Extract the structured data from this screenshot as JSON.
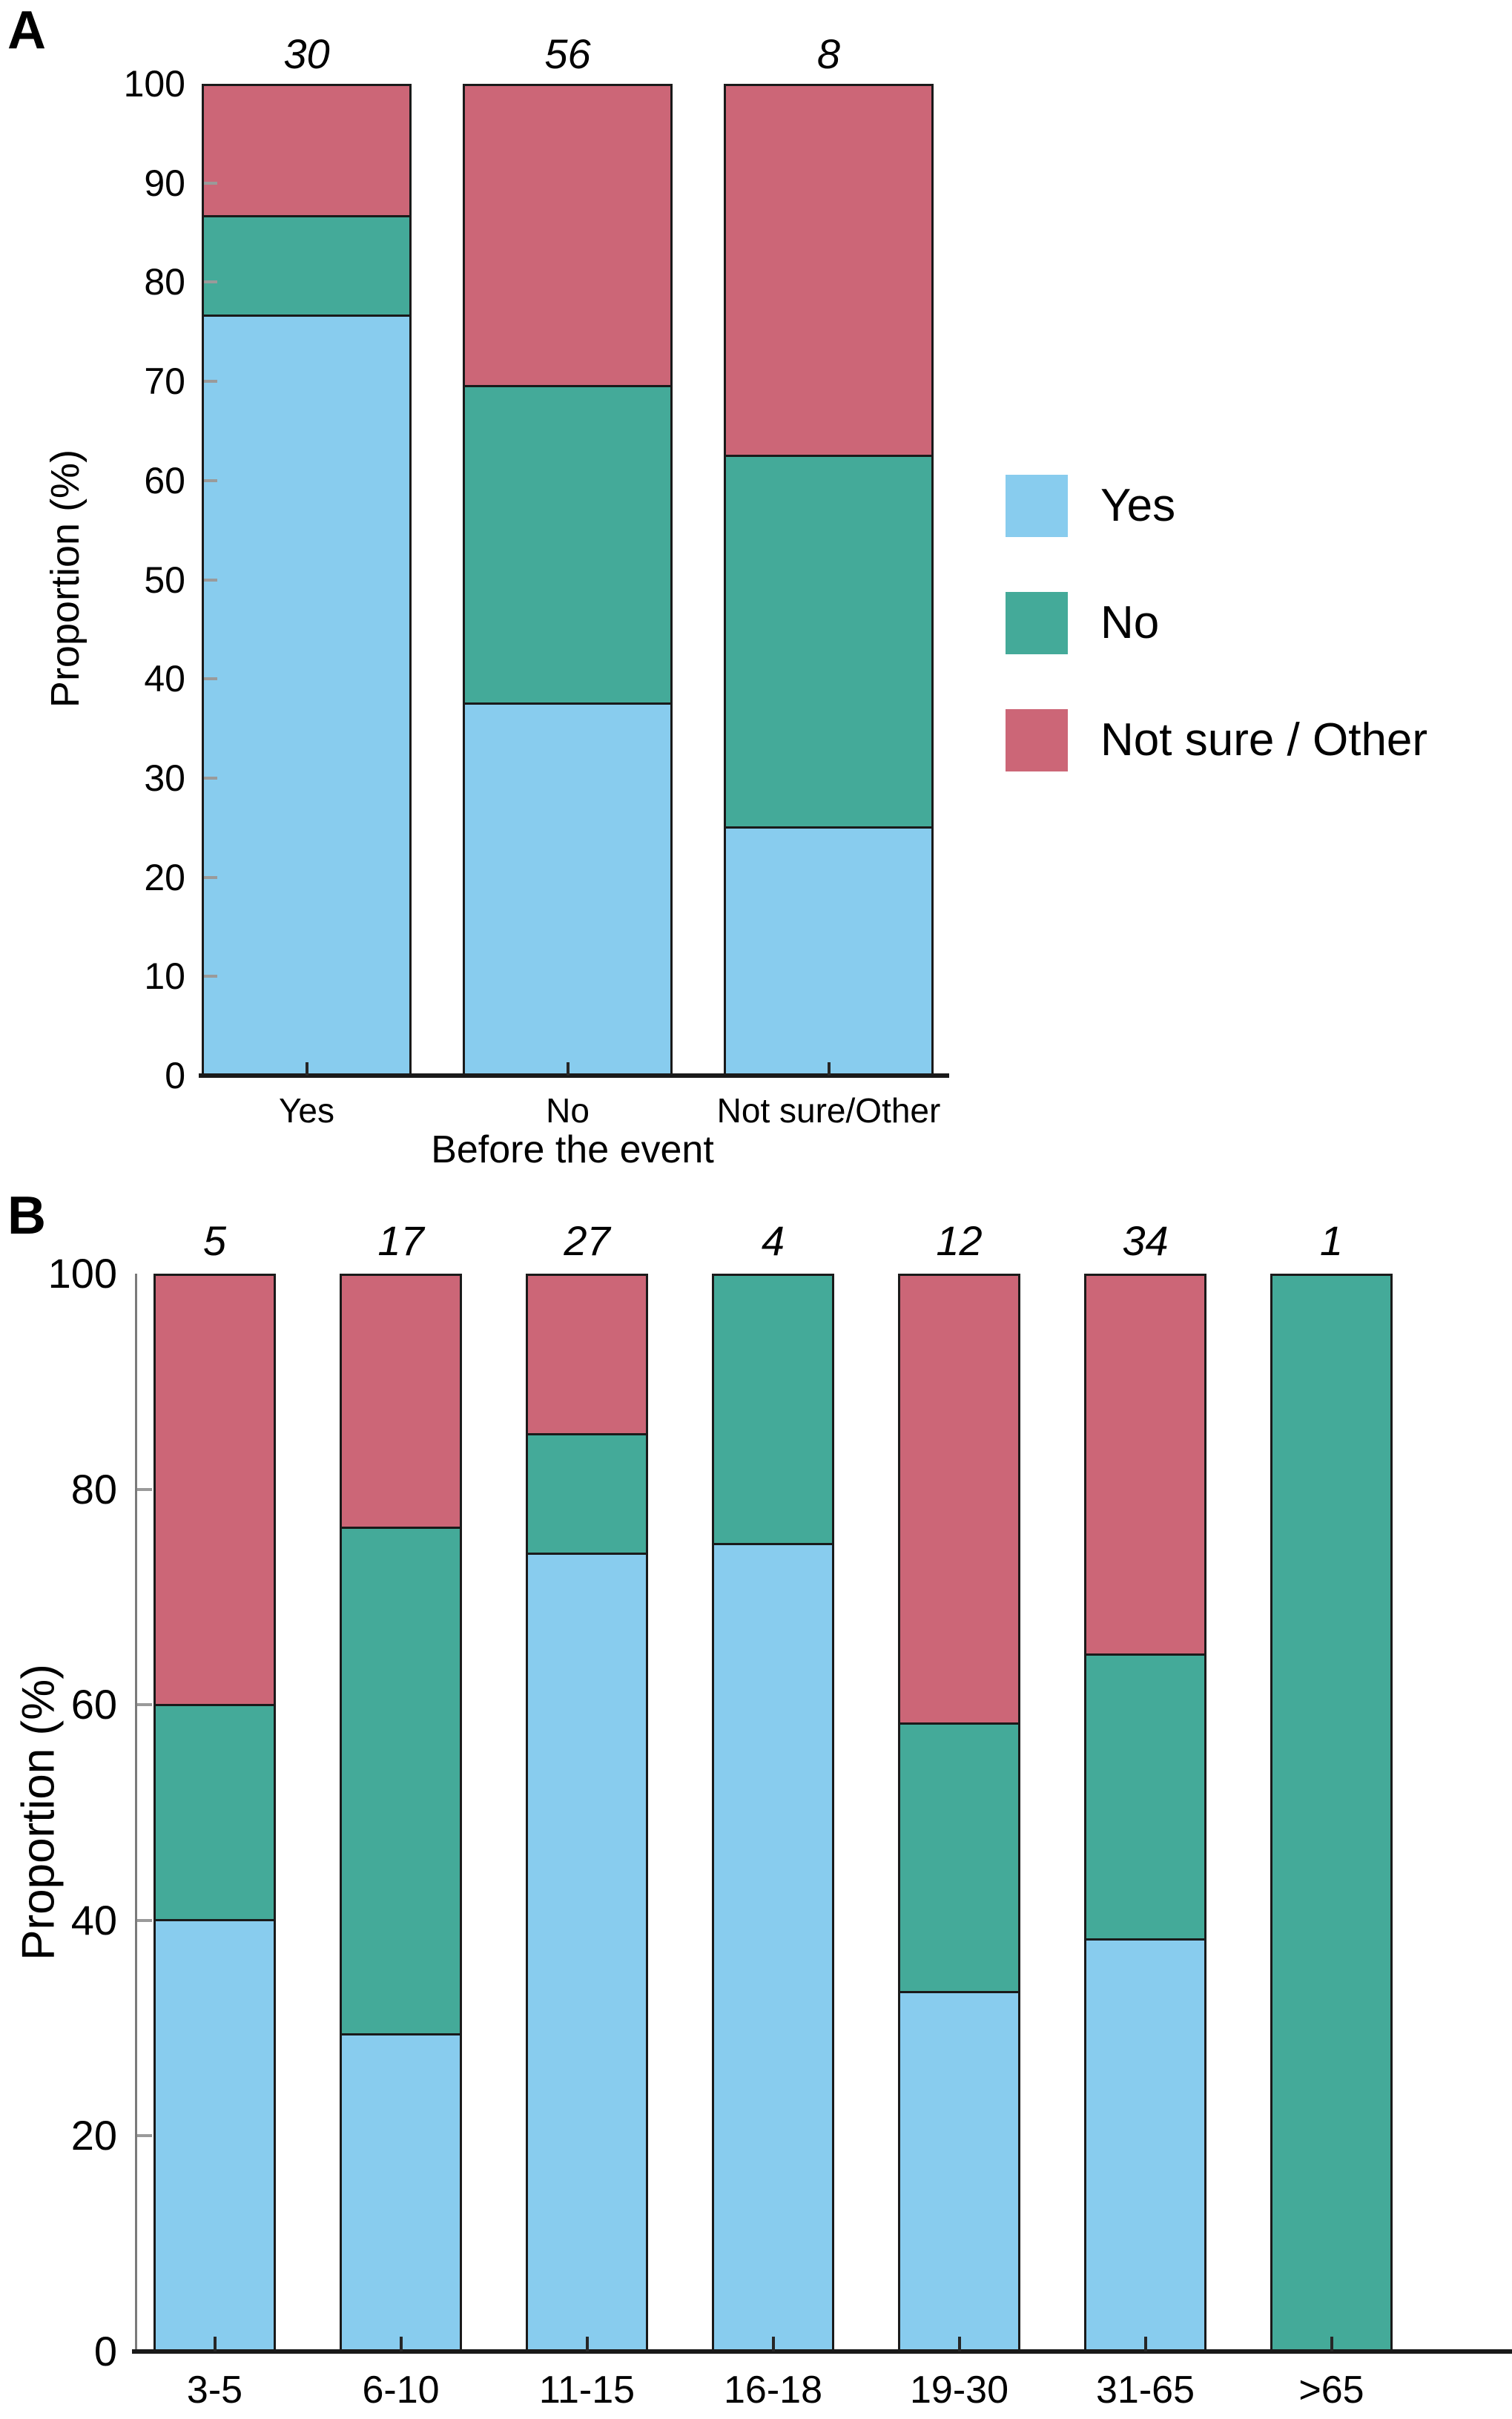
{
  "colors": {
    "yes": "#88CCEE",
    "no": "#44AA99",
    "not_sure": "#CC6677",
    "bar_border": "#1a1a1a",
    "axis_line": "#1a1a1a",
    "spine": "#7a7a7a"
  },
  "legend": {
    "items": [
      {
        "label": "Yes",
        "color_key": "yes"
      },
      {
        "label": "No",
        "color_key": "no"
      },
      {
        "label": "Not sure / Other",
        "color_key": "not_sure"
      }
    ]
  },
  "chart_data": [
    {
      "id": "A",
      "type": "bar",
      "stacked": true,
      "panel_label": "A",
      "xlabel": "Before the event",
      "ylabel": "Proportion (%)",
      "ylim": [
        0,
        100
      ],
      "yticks": [
        0,
        10,
        20,
        30,
        40,
        50,
        60,
        70,
        80,
        90,
        100
      ],
      "grid": false,
      "legend_position": "right",
      "categories": [
        "Yes",
        "No",
        "Not sure/Other"
      ],
      "bar_counts": [
        "30",
        "56",
        "8"
      ],
      "series": [
        {
          "name": "Yes",
          "color_key": "yes",
          "values": [
            76.7,
            37.5,
            25.0
          ]
        },
        {
          "name": "No",
          "color_key": "no",
          "values": [
            10.0,
            32.1,
            37.5
          ]
        },
        {
          "name": "Not sure / Other",
          "color_key": "not_sure",
          "values": [
            13.3,
            30.4,
            37.5
          ]
        }
      ]
    },
    {
      "id": "B",
      "type": "bar",
      "stacked": true,
      "panel_label": "B",
      "xlabel": "",
      "ylabel": "Proportion (%)",
      "ylim": [
        0,
        100
      ],
      "yticks": [
        0,
        20,
        40,
        60,
        80,
        100
      ],
      "grid": false,
      "legend_position": "none",
      "categories": [
        "3-5",
        "6-10",
        "11-15",
        "16-18",
        "19-30",
        "31-65",
        ">65"
      ],
      "bar_counts": [
        "5",
        "17",
        "27",
        "4",
        "12",
        "34",
        "1"
      ],
      "series": [
        {
          "name": "Yes",
          "color_key": "yes",
          "values": [
            40.0,
            29.4,
            74.1,
            75.0,
            33.3,
            38.2,
            0
          ]
        },
        {
          "name": "No",
          "color_key": "no",
          "values": [
            20.0,
            47.1,
            11.1,
            25.0,
            25.0,
            26.5,
            100.0
          ]
        },
        {
          "name": "Not sure / Other",
          "color_key": "not_sure",
          "values": [
            40.0,
            23.5,
            14.8,
            0,
            41.7,
            35.3,
            0
          ]
        }
      ]
    }
  ]
}
